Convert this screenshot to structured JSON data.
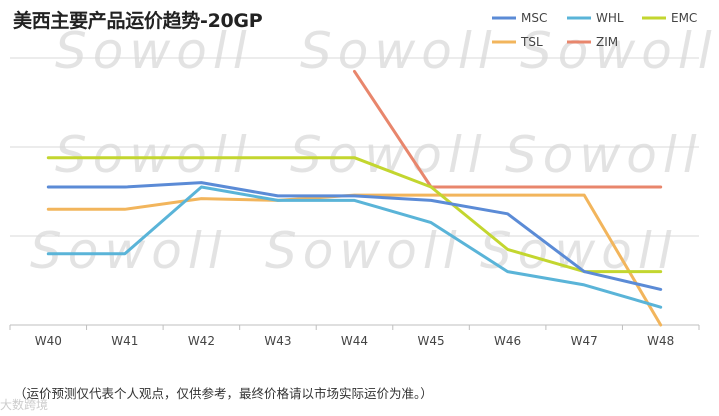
{
  "title": "美西主要产品运价趋势-20GP",
  "footnote": "（运价预测仅代表个人观点，仅供参考，最终价格请以市场实际运价为准。）",
  "watermark": "Sowoll",
  "corner_mark": "大数跨境",
  "chart_data": {
    "type": "line",
    "title": "美西主要产品运价趋势-20GP",
    "categories": [
      "W40",
      "W41",
      "W42",
      "W43",
      "W44",
      "W45",
      "W46",
      "W47",
      "W48"
    ],
    "ylim": [
      0,
      3000
    ],
    "grid": true,
    "legend_position": "top-right",
    "series": [
      {
        "name": "MSC",
        "color": "#5b8bd6",
        "values": [
          1550,
          1550,
          1600,
          1450,
          1450,
          1400,
          1250,
          600,
          400
        ]
      },
      {
        "name": "WHL",
        "color": "#5ab4d8",
        "values": [
          800,
          800,
          1550,
          1400,
          1400,
          1150,
          600,
          450,
          200
        ]
      },
      {
        "name": "EMC",
        "color": "#c3d62f",
        "values": [
          1880,
          1880,
          1880,
          1880,
          1880,
          1550,
          850,
          600,
          600
        ]
      },
      {
        "name": "TSL",
        "color": "#f2b55c",
        "values": [
          1300,
          1300,
          1420,
          1400,
          1460,
          1460,
          1460,
          1460,
          0
        ]
      },
      {
        "name": "ZIM",
        "color": "#e8866c",
        "values": [
          null,
          null,
          null,
          null,
          2850,
          1550,
          1550,
          1550,
          1550
        ]
      }
    ]
  }
}
